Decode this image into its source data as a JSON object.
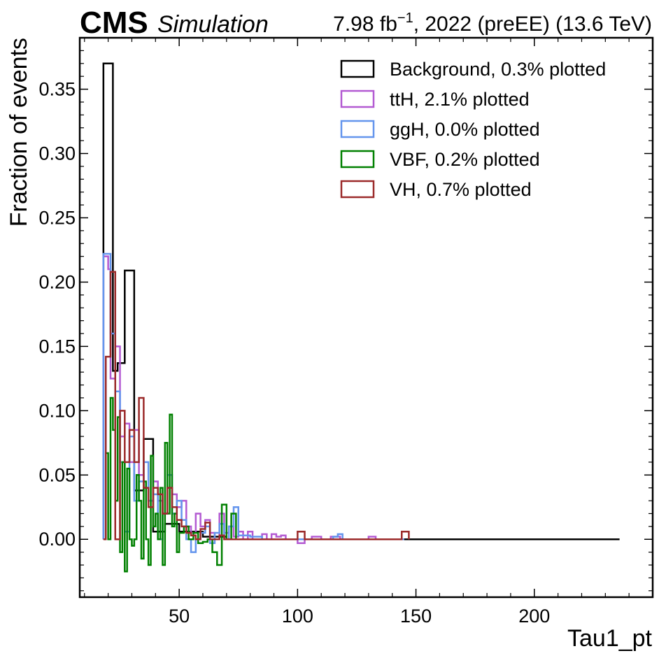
{
  "header": {
    "experiment": "CMS",
    "status": "Simulation",
    "lumi_value": "7.98 fb",
    "lumi_exponent": "−1",
    "lumi_rest": ", 2022 (preEE) (13.6 TeV)"
  },
  "chart_data": {
    "type": "line",
    "drawstyle": "step",
    "xlabel": "Tau1_pt",
    "ylabel": "Fraction of events",
    "xlim": [
      8,
      250
    ],
    "ylim": [
      -0.045,
      0.39
    ],
    "x_ticks": [
      50,
      100,
      150,
      200
    ],
    "x_tick_labels": [
      "50",
      "100",
      "150",
      "200"
    ],
    "y_ticks": [
      0.0,
      0.05,
      0.1,
      0.15,
      0.2,
      0.25,
      0.3,
      0.35
    ],
    "y_tick_labels": [
      "0.00",
      "0.05",
      "0.10",
      "0.15",
      "0.20",
      "0.25",
      "0.30",
      "0.35"
    ],
    "legend_position": "top-right",
    "series": [
      {
        "name": "Background, 0.3% plotted",
        "color": "#000000",
        "x": [
          18,
          22,
          24,
          27,
          31,
          35,
          39,
          44,
          50,
          60,
          70,
          236
        ],
        "y": [
          0.37,
          0.131,
          0.137,
          0.209,
          0.038,
          0.078,
          0.006,
          0.012,
          0.006,
          0.002,
          0.0,
          0.0
        ]
      },
      {
        "name": "ttH, 2.1% plotted",
        "color": "#b35ad2",
        "x": [
          18,
          20,
          21,
          23,
          25,
          27,
          29,
          31,
          33,
          35,
          37,
          39,
          41,
          43,
          45,
          47,
          49,
          51,
          53,
          55,
          57,
          59,
          61,
          63,
          65,
          67,
          69,
          71,
          73,
          75,
          77,
          79,
          81,
          83,
          85,
          87,
          89,
          91,
          93,
          95,
          100,
          103,
          106,
          110,
          114,
          118,
          125,
          130,
          133,
          145
        ],
        "y": [
          0.22,
          0.21,
          0.125,
          0.15,
          0.08,
          0.09,
          0.06,
          0.085,
          0.05,
          0.04,
          0.03,
          0.045,
          0.03,
          0.02,
          0.04,
          0.035,
          0.025,
          0.03,
          0.01,
          0.005,
          0.02,
          0.01,
          0.015,
          0.005,
          0.0,
          0.02,
          0.005,
          0.01,
          0.002,
          0.006,
          0.0,
          0.006,
          0.0,
          0.0,
          0.004,
          0.0,
          0.004,
          0.002,
          0.003,
          0.0,
          -0.003,
          0.0,
          0.002,
          0.0,
          0.002,
          0.0,
          0.0,
          0.002,
          0.0,
          0.0
        ]
      },
      {
        "name": "ggH, 0.0% plotted",
        "color": "#6495ed",
        "x": [
          18,
          21,
          23,
          25,
          27,
          29,
          31,
          33,
          35,
          37,
          39,
          41,
          43,
          45,
          47,
          49,
          51,
          53,
          55,
          57,
          59,
          61,
          63,
          65,
          67,
          69,
          71,
          73,
          75,
          80,
          85,
          90,
          100,
          110,
          115,
          117,
          119,
          125,
          145
        ],
        "y": [
          0.222,
          0.16,
          0.115,
          0.06,
          0.006,
          0.08,
          0.03,
          0.045,
          0.06,
          0.03,
          0.035,
          0.0,
          0.02,
          0.05,
          0.02,
          0.03,
          0.015,
          0.0,
          -0.01,
          0.0,
          0.005,
          0.01,
          -0.003,
          0.005,
          0.012,
          0.0,
          0.01,
          0.025,
          0.003,
          0.002,
          0.0,
          0.0,
          0.0,
          0.0,
          0.002,
          0.004,
          0.0,
          0.0,
          0.0
        ]
      },
      {
        "name": "VBF, 0.2% plotted",
        "color": "#008000",
        "x": [
          19,
          20,
          21,
          22,
          23,
          24,
          25,
          26,
          27,
          28,
          29,
          30,
          31,
          32,
          33,
          34,
          35,
          36,
          37,
          38,
          39,
          40,
          41,
          42,
          43,
          44,
          45,
          46,
          47,
          48,
          49,
          50,
          52,
          54,
          56,
          58,
          60,
          62,
          64,
          66,
          68,
          70,
          72,
          74
        ],
        "y": [
          0.067,
          0.0,
          0.11,
          0.085,
          0.03,
          0.095,
          -0.01,
          0.06,
          -0.025,
          0.055,
          0.0,
          -0.005,
          0.0,
          0.05,
          0.03,
          -0.015,
          0.045,
          0.0,
          -0.02,
          0.065,
          0.01,
          0.02,
          0.0,
          0.04,
          -0.02,
          0.075,
          0.02,
          0.097,
          0.01,
          0.02,
          -0.01,
          0.005,
          0.01,
          0.0,
          0.005,
          -0.003,
          -0.002,
          0.0,
          -0.01,
          -0.02,
          0.027,
          0.0,
          0.02,
          0.0
        ]
      },
      {
        "name": "VH, 0.7% plotted",
        "color": "#9b2a2a",
        "x": [
          18,
          19,
          21,
          23,
          25,
          27,
          29,
          31,
          33,
          35,
          37,
          39,
          41,
          43,
          45,
          47,
          49,
          51,
          53,
          55,
          57,
          59,
          61,
          63,
          65,
          67,
          69,
          75,
          80,
          90,
          95,
          100,
          103,
          110,
          144,
          147
        ],
        "y": [
          0.0,
          0.142,
          0.208,
          0.0,
          0.1,
          0.06,
          0.085,
          0.06,
          0.11,
          0.04,
          0.025,
          0.04,
          0.035,
          0.02,
          0.04,
          0.025,
          0.015,
          0.01,
          0.005,
          0.003,
          0.0,
          0.008,
          0.013,
          0.0,
          0.0,
          0.003,
          0.0,
          0.0,
          0.0,
          0.0,
          0.0,
          0.006,
          0.0,
          0.0,
          0.006,
          0.0
        ]
      }
    ]
  }
}
